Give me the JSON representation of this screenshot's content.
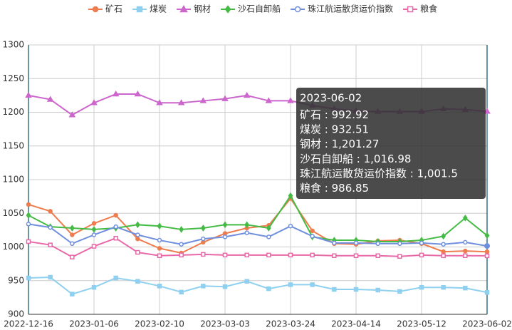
{
  "chart_data": {
    "type": "line",
    "categories": [
      "2022-12-16",
      null,
      null,
      "2023-01-06",
      null,
      null,
      "2023-02-10",
      null,
      null,
      "2023-03-03",
      null,
      null,
      "2023-03-24",
      null,
      null,
      "2023-04-14",
      null,
      null,
      "2023-05-12",
      null,
      null,
      "2023-06-02"
    ],
    "ylim": [
      900,
      1300
    ],
    "yticks": [
      900,
      950,
      1000,
      1050,
      1100,
      1150,
      1200,
      1250,
      1300
    ],
    "grid": true,
    "legend": "top",
    "series": [
      {
        "name": "矿石",
        "color": "#ee7c4e",
        "marker": "circle",
        "values": [
          1063,
          1053,
          1018,
          1035,
          1047,
          1012,
          998,
          991,
          1007,
          1020,
          1028,
          1032,
          1072,
          1024,
          1005,
          1004,
          1009,
          1010,
          1005,
          993,
          994,
          992.92
        ]
      },
      {
        "name": "煤炭",
        "color": "#8fd0f0",
        "marker": "square",
        "values": [
          954,
          955,
          930,
          940,
          954,
          949,
          942,
          933,
          942,
          941,
          949,
          938,
          944,
          944,
          937,
          937,
          936,
          934,
          940,
          940,
          939,
          932.51
        ]
      },
      {
        "name": "钢材",
        "color": "#cc66cc",
        "marker": "triangle",
        "values": [
          1225,
          1219,
          1196,
          1214,
          1227,
          1227,
          1214,
          1214,
          1217,
          1220,
          1225,
          1217,
          1217,
          1210,
          1205,
          1202,
          1201,
          1201,
          1201,
          1205,
          1204,
          1201.27
        ]
      },
      {
        "name": "沙石自卸船",
        "color": "#44bb44",
        "marker": "diamond",
        "values": [
          1047,
          1030,
          1028,
          1026,
          1028,
          1033,
          1031,
          1026,
          1028,
          1033,
          1033,
          1028,
          1076,
          1015,
          1010,
          1010,
          1008,
          1008,
          1010,
          1016,
          1043,
          1016.98
        ]
      },
      {
        "name": "珠江航运散货运价指数",
        "color": "#6f8fde",
        "marker": "hollow-circle",
        "values": [
          1034,
          1029,
          1005,
          1018,
          1030,
          1018,
          1010,
          1004,
          1012,
          1015,
          1021,
          1015,
          1031,
          1016,
          1006,
          1006,
          1005,
          1005,
          1006,
          1004,
          1007,
          1001.5
        ]
      },
      {
        "name": "粮食",
        "color": "#e868a8",
        "marker": "hollow-square",
        "values": [
          1008,
          1003,
          985,
          1001,
          1013,
          992,
          987,
          988,
          989,
          988,
          988,
          988,
          988,
          988,
          987,
          987,
          987,
          986,
          988,
          987,
          987,
          986.85
        ]
      }
    ],
    "tooltip": {
      "index": 21,
      "value_labels": [
        "992.92",
        "932.51",
        "1,201.27",
        "1,016.98",
        "1,001.5",
        "986.85"
      ]
    }
  }
}
